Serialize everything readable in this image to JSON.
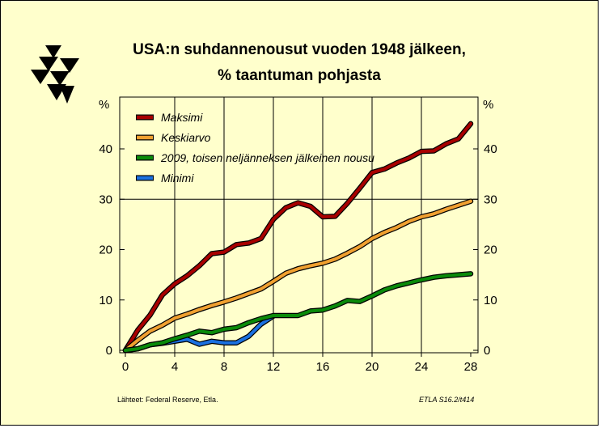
{
  "title_line1": "USA:n suhdannenousut vuoden 1948 jälkeen,",
  "title_line2": "% taantuman pohjasta",
  "source": "Lähteet:   Federal Reserve, Etla.",
  "code": "ETLA S16.2/t414",
  "chart_data": {
    "type": "line",
    "title": "USA:n suhdannenousut vuoden 1948 jälkeen, % taantuman pohjasta",
    "ylabel_left": "%",
    "ylabel_right": "%",
    "xlim": [
      0,
      28
    ],
    "ylim": [
      0,
      48
    ],
    "x_ticks": [
      0,
      4,
      8,
      12,
      16,
      20,
      24,
      28
    ],
    "y_ticks": [
      0,
      10,
      20,
      30,
      40
    ],
    "grid": "major vertical at x=4,8,12,16,20,24; horizontal at y=30",
    "legend_position": "top-left",
    "x": [
      0,
      1,
      2,
      3,
      4,
      5,
      6,
      7,
      8,
      9,
      10,
      11,
      12,
      13,
      14,
      15,
      16,
      17,
      18,
      19,
      20,
      21,
      22,
      23,
      24,
      25,
      26,
      27,
      28
    ],
    "series": [
      {
        "name": "Maksimi",
        "color": "#a80000",
        "values": [
          0,
          4,
          7,
          11,
          13.2,
          14.8,
          16.8,
          19.2,
          19.5,
          21,
          21.3,
          22.2,
          26,
          28.3,
          29.3,
          28.6,
          26.5,
          26.6,
          29.2,
          32.2,
          35.3,
          36,
          37.2,
          38.2,
          39.5,
          39.6,
          41,
          42,
          45
        ]
      },
      {
        "name": "Keskiarvo",
        "color": "#f0a030",
        "values": [
          0,
          2,
          3.8,
          5,
          6.4,
          7.2,
          8.1,
          8.9,
          9.6,
          10.4,
          11.3,
          12.2,
          13.7,
          15.3,
          16.2,
          16.8,
          17.3,
          18.1,
          19.3,
          20.6,
          22.2,
          23.4,
          24.4,
          25.6,
          26.5,
          27.1,
          28,
          28.8,
          29.6
        ]
      },
      {
        "name": "2009, toisen neljänneksen jälkeinen nousu",
        "color": "#0a8a0a",
        "values": [
          0,
          0.3,
          1.1,
          1.5,
          2.3,
          3,
          3.8,
          3.5,
          4.2,
          4.5,
          5.5,
          6.3,
          6.9,
          6.9,
          6.9,
          7.8,
          8,
          8.8,
          9.9,
          9.7,
          10.8,
          12,
          12.8,
          13.4,
          14,
          14.5,
          14.8,
          15,
          15.2
        ]
      },
      {
        "name": "Minimi",
        "color": "#1a70e0",
        "x": [
          0,
          1,
          2,
          3,
          4,
          5,
          6,
          7,
          8,
          9,
          10,
          11,
          12
        ],
        "values": [
          0,
          0.3,
          1.1,
          1.4,
          1.8,
          2.2,
          1.2,
          1.8,
          1.5,
          1.5,
          2.8,
          5.2,
          6.8
        ]
      }
    ]
  }
}
